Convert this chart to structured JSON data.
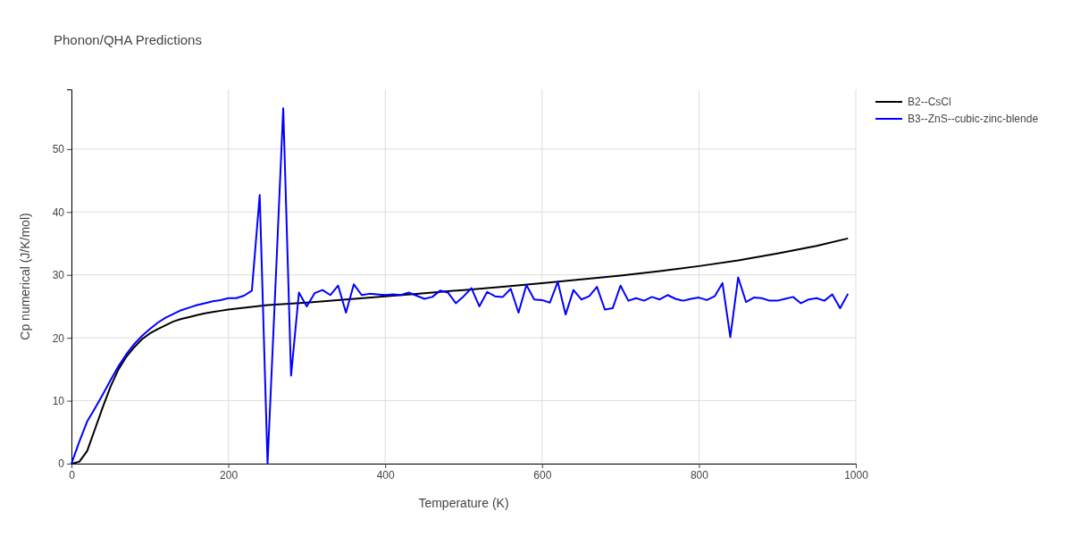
{
  "chart_data": {
    "type": "line",
    "title": "Phonon/QHA Predictions",
    "xlabel": "Temperature (K)",
    "ylabel": "Cp numerical (J/K/mol)",
    "xlim": [
      0,
      1000
    ],
    "ylim": [
      0,
      59.5
    ],
    "xticks": [
      0,
      200,
      400,
      600,
      800,
      1000
    ],
    "yticks": [
      0,
      10,
      20,
      30,
      40,
      50
    ],
    "grid": true,
    "legend": "top right",
    "line_style": "solid",
    "marker": "none",
    "series": [
      {
        "name": "B2--CsCl",
        "color": "#000000",
        "x": [
          0,
          10,
          20,
          30,
          40,
          50,
          60,
          70,
          80,
          90,
          100,
          110,
          120,
          130,
          140,
          150,
          160,
          170,
          180,
          190,
          200,
          250,
          300,
          350,
          400,
          450,
          500,
          550,
          600,
          650,
          700,
          750,
          800,
          850,
          900,
          950,
          990
        ],
        "values": [
          0,
          0.3,
          2,
          5.5,
          9,
          12.3,
          15,
          17,
          18.5,
          19.8,
          20.7,
          21.4,
          22,
          22.6,
          23,
          23.3,
          23.6,
          23.9,
          24.1,
          24.3,
          24.5,
          25.2,
          25.6,
          26.1,
          26.6,
          27.1,
          27.6,
          28.1,
          28.7,
          29.3,
          29.9,
          30.6,
          31.4,
          32.3,
          33.4,
          34.6,
          35.8
        ]
      },
      {
        "name": "B3--ZnS--cubic-zinc-blende",
        "color": "#0000ff",
        "x": [
          0,
          10,
          20,
          30,
          40,
          50,
          60,
          70,
          80,
          90,
          100,
          110,
          120,
          130,
          140,
          150,
          160,
          170,
          180,
          190,
          200,
          210,
          220,
          230,
          240,
          250,
          260,
          270,
          280,
          290,
          300,
          310,
          320,
          330,
          340,
          350,
          360,
          370,
          380,
          390,
          400,
          410,
          420,
          430,
          440,
          450,
          460,
          470,
          480,
          490,
          500,
          510,
          520,
          530,
          540,
          550,
          560,
          570,
          580,
          590,
          600,
          610,
          620,
          630,
          640,
          650,
          660,
          670,
          680,
          690,
          700,
          710,
          720,
          730,
          740,
          750,
          760,
          770,
          780,
          790,
          800,
          810,
          820,
          830,
          840,
          850,
          860,
          870,
          880,
          890,
          900,
          910,
          920,
          930,
          940,
          950,
          960,
          970,
          980,
          990
        ],
        "values": [
          0,
          3.5,
          6.7,
          8.8,
          11,
          13.3,
          15.5,
          17.4,
          19,
          20.3,
          21.4,
          22.4,
          23.2,
          23.8,
          24.4,
          24.8,
          25.2,
          25.5,
          25.8,
          26,
          26.3,
          26.3,
          26.7,
          27.5,
          42.7,
          0,
          28,
          56.5,
          14,
          27.2,
          25,
          27.1,
          27.6,
          26.8,
          28.3,
          24,
          28.5,
          26.8,
          27,
          26.9,
          26.8,
          26.9,
          26.8,
          27.2,
          26.7,
          26.2,
          26.5,
          27.5,
          27.2,
          25.5,
          26.6,
          27.9,
          25,
          27.3,
          26.6,
          26.5,
          27.8,
          24,
          28.4,
          26.1,
          26,
          25.6,
          28.9,
          23.7,
          27.6,
          26.1,
          26.6,
          28.1,
          24.5,
          24.7,
          28.3,
          25.9,
          26.3,
          25.9,
          26.5,
          26.1,
          26.8,
          26.2,
          25.9,
          26.2,
          26.4,
          26,
          26.6,
          28.7,
          20.1,
          29.6,
          25.7,
          26.4,
          26.3,
          25.9,
          25.9,
          26.2,
          26.5,
          25.5,
          26.1,
          26.3,
          25.9,
          26.9,
          24.7,
          27
        ]
      }
    ]
  }
}
